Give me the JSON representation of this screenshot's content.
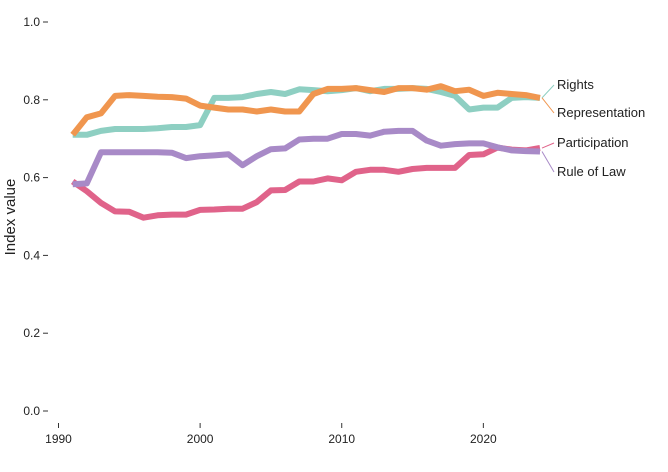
{
  "chart_data": {
    "type": "line",
    "title": "",
    "xlabel": "",
    "ylabel": "Index value",
    "xlim": [
      1990,
      2024
    ],
    "ylim": [
      0,
      1
    ],
    "xticks": [
      1990,
      2000,
      2010,
      2020
    ],
    "xtick_labels": [
      "1990",
      "2000",
      "2010",
      "2020"
    ],
    "yticks": [
      0,
      0.2,
      0.4,
      0.6,
      0.8,
      1
    ],
    "ytick_labels": [
      "0.0",
      "0.2",
      "0.4",
      "0.6",
      "0.8",
      "1.0"
    ],
    "grid": false,
    "legend": "direct labels at right end of lines",
    "x": [
      1991,
      1992,
      1993,
      1994,
      1995,
      1996,
      1997,
      1998,
      1999,
      2000,
      2001,
      2002,
      2003,
      2004,
      2005,
      2006,
      2007,
      2008,
      2009,
      2010,
      2011,
      2012,
      2013,
      2014,
      2015,
      2016,
      2017,
      2018,
      2019,
      2020,
      2021,
      2022,
      2023,
      2024
    ],
    "series": [
      {
        "name": "Rights",
        "color": "#8ecfc2",
        "values": [
          0.71,
          0.71,
          0.72,
          0.725,
          0.725,
          0.725,
          0.727,
          0.73,
          0.73,
          0.735,
          0.805,
          0.805,
          0.807,
          0.815,
          0.82,
          0.815,
          0.827,
          0.825,
          0.822,
          0.825,
          0.83,
          0.822,
          0.828,
          0.828,
          0.83,
          0.828,
          0.82,
          0.81,
          0.775,
          0.78,
          0.78,
          0.805,
          0.807,
          0.805
        ]
      },
      {
        "name": "Representation",
        "color": "#f0964f",
        "values": [
          0.71,
          0.755,
          0.765,
          0.81,
          0.812,
          0.81,
          0.808,
          0.807,
          0.803,
          0.785,
          0.78,
          0.775,
          0.775,
          0.77,
          0.775,
          0.77,
          0.77,
          0.815,
          0.828,
          0.828,
          0.83,
          0.825,
          0.82,
          0.83,
          0.83,
          0.826,
          0.835,
          0.822,
          0.826,
          0.81,
          0.818,
          0.815,
          0.812,
          0.805
        ]
      },
      {
        "name": "Participation",
        "color": "#e0638a",
        "values": [
          0.59,
          0.565,
          0.535,
          0.513,
          0.512,
          0.497,
          0.503,
          0.505,
          0.505,
          0.517,
          0.518,
          0.52,
          0.52,
          0.537,
          0.567,
          0.568,
          0.59,
          0.59,
          0.598,
          0.593,
          0.615,
          0.62,
          0.62,
          0.615,
          0.622,
          0.625,
          0.625,
          0.625,
          0.658,
          0.66,
          0.677,
          0.672,
          0.67,
          0.676
        ]
      },
      {
        "name": "Rule of Law",
        "color": "#a88ac7",
        "values": [
          0.583,
          0.585,
          0.665,
          0.665,
          0.665,
          0.665,
          0.665,
          0.664,
          0.65,
          0.655,
          0.657,
          0.66,
          0.632,
          0.655,
          0.673,
          0.675,
          0.698,
          0.7,
          0.7,
          0.712,
          0.712,
          0.708,
          0.718,
          0.72,
          0.72,
          0.695,
          0.682,
          0.686,
          0.688,
          0.688,
          0.678,
          0.67,
          0.668,
          0.667
        ]
      }
    ]
  }
}
